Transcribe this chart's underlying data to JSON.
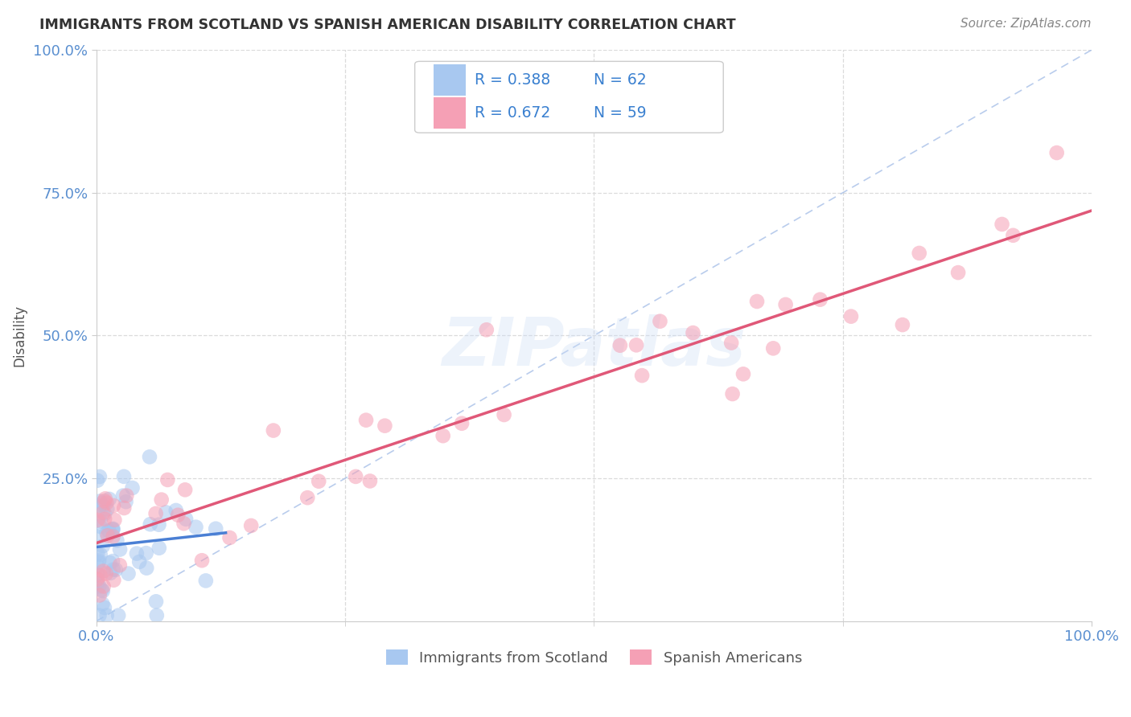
{
  "title": "IMMIGRANTS FROM SCOTLAND VS SPANISH AMERICAN DISABILITY CORRELATION CHART",
  "source": "Source: ZipAtlas.com",
  "ylabel": "Disability",
  "xlim": [
    0.0,
    1.0
  ],
  "ylim": [
    0.0,
    1.0
  ],
  "R_scotland": 0.388,
  "N_scotland": 62,
  "R_spanish": 0.672,
  "N_spanish": 59,
  "color_scotland": "#a8c8f0",
  "color_spanish": "#f5a0b5",
  "color_scotland_line": "#4a7fd4",
  "color_spanish_line": "#e05878",
  "color_dashed_line": "#a8c0e8",
  "watermark_text": "ZIPatlas",
  "background_color": "#ffffff",
  "grid_color": "#d8d8d8",
  "tick_color": "#5a8fd0",
  "title_color": "#333333",
  "source_color": "#888888",
  "ylabel_color": "#555555",
  "legend_text_color": "#3a80d0",
  "legend_n_color": "#555555"
}
